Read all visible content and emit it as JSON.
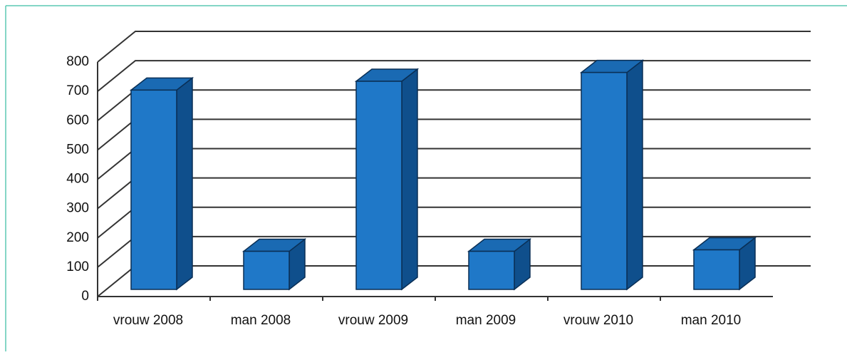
{
  "chart_data": {
    "type": "bar3d",
    "categories": [
      "vrouw 2008",
      "man 2008",
      "vrouw 2009",
      "man 2009",
      "vrouw 2010",
      "man 2010"
    ],
    "values": [
      680,
      130,
      710,
      130,
      740,
      135
    ],
    "color": "#1f78c8",
    "ylim": [
      0,
      800
    ],
    "yticks": [
      0,
      100,
      200,
      300,
      400,
      500,
      600,
      700,
      800
    ],
    "grid": true
  }
}
